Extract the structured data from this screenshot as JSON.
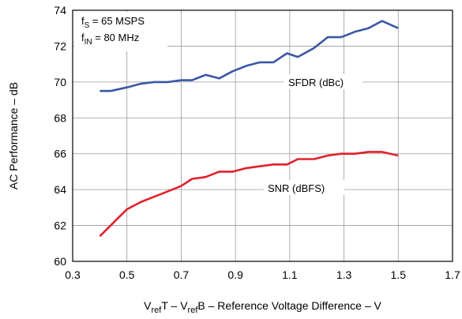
{
  "chart_data": {
    "type": "line",
    "xlabel_parts": [
      "V",
      "ref",
      "T – V",
      "ref",
      "B – Reference Voltage Difference – V"
    ],
    "ylabel": "AC Performance – dB",
    "xlim": [
      0.3,
      1.7
    ],
    "ylim": [
      60,
      74
    ],
    "xticks": [
      "0.3",
      "0.5",
      "0.7",
      "0.9",
      "1.1",
      "1.3",
      "1.5",
      "1.7"
    ],
    "yticks": [
      "60",
      "62",
      "64",
      "66",
      "68",
      "70",
      "72",
      "74"
    ],
    "grid": true,
    "annotations": {
      "fs": {
        "main": "f",
        "sub": "S",
        "rest": " = 65 MSPS"
      },
      "fin": {
        "main": "f",
        "sub": "IN",
        "rest": " = 80 MHz"
      }
    },
    "series": [
      {
        "name": "SFDR (dBc)",
        "color": "#3a57a7",
        "x": [
          0.4,
          0.44,
          0.5,
          0.55,
          0.6,
          0.65,
          0.7,
          0.74,
          0.79,
          0.84,
          0.89,
          0.94,
          0.99,
          1.04,
          1.09,
          1.13,
          1.19,
          1.24,
          1.29,
          1.34,
          1.39,
          1.44,
          1.5
        ],
        "values": [
          69.5,
          69.5,
          69.7,
          69.9,
          70.0,
          70.0,
          70.1,
          70.1,
          70.4,
          70.2,
          70.6,
          70.9,
          71.1,
          71.1,
          71.6,
          71.4,
          71.9,
          72.5,
          72.5,
          72.8,
          73.0,
          73.4,
          73.0
        ]
      },
      {
        "name": "SNR (dBFS)",
        "color": "#e0202a",
        "x": [
          0.4,
          0.44,
          0.5,
          0.55,
          0.6,
          0.65,
          0.7,
          0.74,
          0.79,
          0.84,
          0.89,
          0.94,
          0.99,
          1.04,
          1.09,
          1.13,
          1.19,
          1.24,
          1.29,
          1.34,
          1.39,
          1.44,
          1.5
        ],
        "values": [
          61.4,
          62.0,
          62.9,
          63.3,
          63.6,
          63.9,
          64.2,
          64.6,
          64.7,
          65.0,
          65.0,
          65.2,
          65.3,
          65.4,
          65.4,
          65.7,
          65.7,
          65.9,
          66.0,
          66.0,
          66.1,
          66.1,
          65.9
        ]
      }
    ]
  }
}
